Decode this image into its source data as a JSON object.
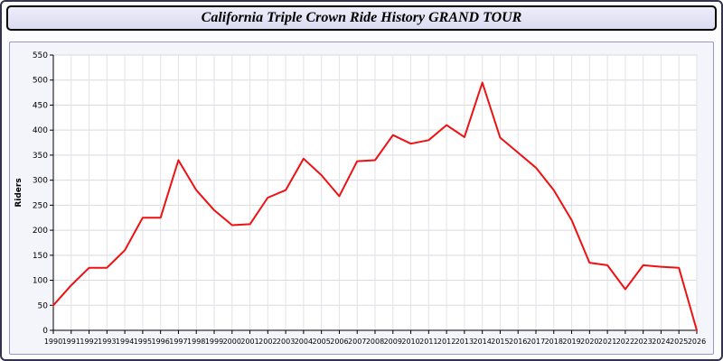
{
  "title": "California Triple Crown Ride History GRAND TOUR",
  "chart_data": {
    "type": "line",
    "title": "California Triple Crown Ride History GRAND TOUR",
    "xlabel": "",
    "ylabel": "Riders",
    "ylim": [
      0,
      550
    ],
    "ytick_step": 50,
    "grid": true,
    "legend": "none",
    "line_color": "#ee1111",
    "x": [
      1990,
      1991,
      1992,
      1993,
      1994,
      1995,
      1996,
      1997,
      1998,
      1999,
      2000,
      2001,
      2002,
      2003,
      2004,
      2005,
      2006,
      2007,
      2008,
      2009,
      2010,
      2011,
      2012,
      2013,
      2014,
      2015,
      2016,
      2017,
      2018,
      2019,
      2020,
      2021,
      2022,
      2023,
      2024,
      2025,
      2026
    ],
    "values": [
      50,
      90,
      125,
      125,
      160,
      225,
      225,
      340,
      280,
      240,
      210,
      212,
      265,
      280,
      343,
      310,
      268,
      338,
      340,
      390,
      373,
      380,
      410,
      386,
      495,
      385,
      355,
      325,
      280,
      220,
      135,
      130,
      82,
      130,
      127,
      125,
      0
    ]
  }
}
